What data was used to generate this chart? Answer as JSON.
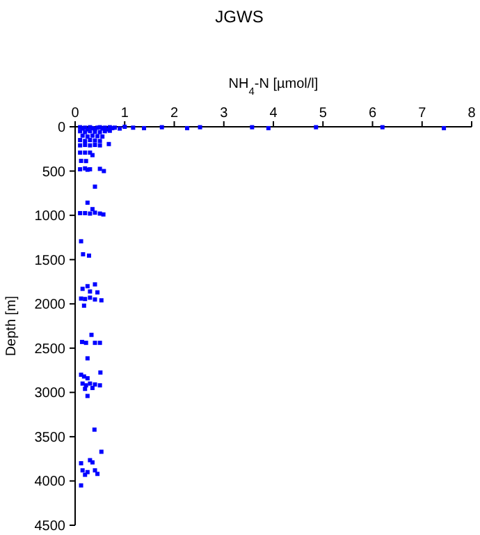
{
  "chart_data": {
    "type": "scatter",
    "title": "JGWS",
    "xlabel": "NH$_{4}$-N [µmol/l]",
    "ylabel": "Depth [m]",
    "xlim": [
      0,
      8
    ],
    "xticks": [
      0,
      1,
      2,
      3,
      4,
      5,
      6,
      7,
      8
    ],
    "ylim": [
      4500,
      0
    ],
    "yticks": [
      0,
      500,
      1000,
      1500,
      2000,
      2500,
      3000,
      3500,
      4000,
      4500
    ],
    "marker": "square",
    "grid": false,
    "series": [
      {
        "color": "#0000ff",
        "x": [
          0.1,
          0.15,
          0.2,
          0.25,
          0.3,
          0.35,
          0.4,
          0.45,
          0.5,
          0.55,
          0.6,
          0.65,
          0.7,
          0.75,
          0.8,
          0.9,
          1.0,
          1.17,
          1.39,
          1.75,
          2.26,
          2.52,
          3.57,
          3.9,
          4.86,
          6.2,
          7.44,
          0.1,
          0.2,
          0.3,
          0.4,
          0.5,
          0.6,
          0.7,
          0.15,
          0.25,
          0.35,
          0.45,
          0.55,
          0.1,
          0.2,
          0.3,
          0.4,
          0.5,
          0.1,
          0.2,
          0.3,
          0.4,
          0.5,
          0.68,
          0.1,
          0.2,
          0.3,
          0.35,
          0.12,
          0.22,
          0.1,
          0.2,
          0.25,
          0.3,
          0.5,
          0.58,
          0.4,
          0.25,
          0.35,
          0.1,
          0.2,
          0.3,
          0.4,
          0.5,
          0.57,
          0.12,
          0.16,
          0.28,
          0.15,
          0.25,
          0.4,
          0.3,
          0.45,
          0.12,
          0.2,
          0.3,
          0.4,
          0.53,
          0.18,
          0.33,
          0.14,
          0.22,
          0.4,
          0.5,
          0.25,
          0.51,
          0.12,
          0.18,
          0.25,
          0.15,
          0.22,
          0.3,
          0.4,
          0.5,
          0.2,
          0.35,
          0.25,
          0.39,
          0.53,
          0.3,
          0.35,
          0.12,
          0.15,
          0.25,
          0.4,
          0.45,
          0.2,
          0.12
        ],
        "values": [
          5,
          20,
          10,
          30,
          5,
          15,
          25,
          10,
          5,
          20,
          10,
          30,
          5,
          15,
          10,
          20,
          0,
          10,
          15,
          5,
          15,
          5,
          5,
          15,
          5,
          5,
          15,
          50,
          60,
          50,
          55,
          60,
          50,
          45,
          100,
          110,
          100,
          105,
          110,
          150,
          160,
          150,
          155,
          160,
          210,
          205,
          210,
          205,
          210,
          195,
          292,
          292,
          292,
          320,
          385,
          387,
          480,
          470,
          485,
          480,
          475,
          500,
          676,
          857,
          930,
          975,
          975,
          980,
          970,
          980,
          990,
          1293,
          1440,
          1455,
          1830,
          1800,
          1780,
          1860,
          1870,
          1940,
          1945,
          1930,
          1950,
          1960,
          2020,
          2350,
          2430,
          2440,
          2440,
          2440,
          2615,
          2775,
          2800,
          2820,
          2840,
          2900,
          2920,
          2900,
          2910,
          2920,
          2960,
          2950,
          3040,
          3420,
          3670,
          3765,
          3790,
          3800,
          3880,
          3900,
          3880,
          3920,
          3930,
          4050
        ]
      }
    ]
  }
}
